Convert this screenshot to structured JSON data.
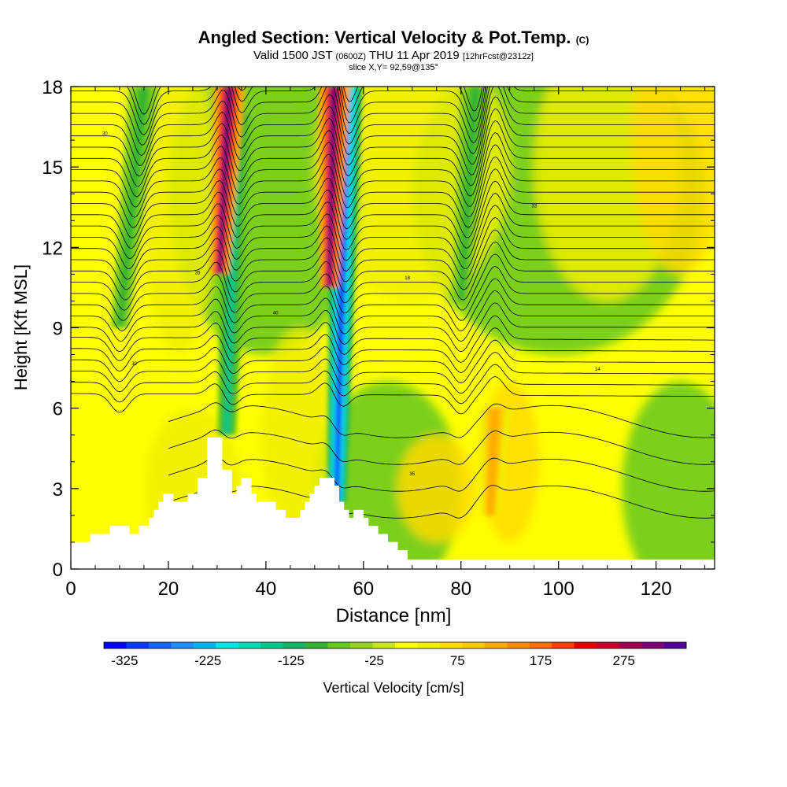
{
  "title": {
    "main": "Angled Section: Vertical Velocity & Pot.Temp.",
    "units_tag": "(C)",
    "valid_prefix": "Valid 1500 JST",
    "valid_z": "(0600Z)",
    "valid_date": "THU 11 Apr 2019",
    "forecast_tag": "[12hrFcst@2312z]",
    "slice": "slice X,Y= 92,59@135°"
  },
  "colors": {
    "scale": [
      "#0000ff",
      "#0a3cff",
      "#1464ff",
      "#1e90ff",
      "#00b4f0",
      "#00e6e6",
      "#00dcb4",
      "#00c88c",
      "#14b464",
      "#32b432",
      "#64c81e",
      "#96d21e",
      "#c8e61e",
      "#ffff00",
      "#f0f000",
      "#ffdc00",
      "#ffc800",
      "#ffaa00",
      "#ff8c00",
      "#ff6e00",
      "#ff3c00",
      "#e60000",
      "#c80028",
      "#a00050",
      "#800078",
      "#500096"
    ]
  },
  "chart_data": {
    "type": "heatmap",
    "xlabel": "Distance [nm]",
    "ylabel": "Height [Kft MSL]",
    "xlim": [
      0,
      132
    ],
    "ylim": [
      0,
      18
    ],
    "xticks": [
      0,
      20,
      40,
      60,
      80,
      100,
      120
    ],
    "yticks": [
      0,
      3,
      6,
      9,
      12,
      15,
      18
    ],
    "colorbar": {
      "label": "Vertical Velocity [cm/s]",
      "min": -350,
      "max": 350,
      "tick_labels": [
        -325,
        -225,
        -125,
        -25,
        75,
        175,
        275
      ]
    },
    "terrain_kft": [
      [
        0,
        1.0
      ],
      [
        4,
        1.0
      ],
      [
        4,
        1.3
      ],
      [
        8,
        1.3
      ],
      [
        8,
        1.6
      ],
      [
        12,
        1.6
      ],
      [
        12,
        1.3
      ],
      [
        14,
        1.3
      ],
      [
        14,
        1.6
      ],
      [
        16,
        1.6
      ],
      [
        16,
        1.9
      ],
      [
        17,
        1.9
      ],
      [
        17,
        2.2
      ],
      [
        18,
        2.2
      ],
      [
        18,
        2.5
      ],
      [
        19,
        2.5
      ],
      [
        19,
        2.8
      ],
      [
        21,
        2.8
      ],
      [
        21,
        2.5
      ],
      [
        24,
        2.5
      ],
      [
        24,
        2.8
      ],
      [
        26,
        2.8
      ],
      [
        26,
        3.4
      ],
      [
        28,
        3.4
      ],
      [
        28,
        4.9
      ],
      [
        31,
        4.9
      ],
      [
        31,
        3.7
      ],
      [
        33,
        3.7
      ],
      [
        33,
        2.8
      ],
      [
        34,
        2.8
      ],
      [
        34,
        3.1
      ],
      [
        35,
        3.1
      ],
      [
        35,
        3.4
      ],
      [
        37,
        3.4
      ],
      [
        37,
        2.8
      ],
      [
        38,
        2.8
      ],
      [
        38,
        2.5
      ],
      [
        42,
        2.5
      ],
      [
        42,
        2.2
      ],
      [
        44,
        2.2
      ],
      [
        44,
        1.9
      ],
      [
        47,
        1.9
      ],
      [
        47,
        2.2
      ],
      [
        48,
        2.2
      ],
      [
        48,
        2.5
      ],
      [
        49,
        2.5
      ],
      [
        49,
        2.8
      ],
      [
        50,
        2.8
      ],
      [
        50,
        3.1
      ],
      [
        51,
        3.1
      ],
      [
        51,
        3.4
      ],
      [
        54,
        3.4
      ],
      [
        54,
        3.1
      ],
      [
        55,
        3.1
      ],
      [
        55,
        2.5
      ],
      [
        56,
        2.5
      ],
      [
        56,
        2.2
      ],
      [
        57,
        2.2
      ],
      [
        57,
        1.9
      ],
      [
        58,
        1.9
      ],
      [
        58,
        2.2
      ],
      [
        60,
        2.2
      ],
      [
        60,
        1.9
      ],
      [
        61,
        1.9
      ],
      [
        61,
        1.6
      ],
      [
        63,
        1.6
      ],
      [
        63,
        1.3
      ],
      [
        65,
        1.3
      ],
      [
        65,
        1.0
      ],
      [
        67,
        1.0
      ],
      [
        67,
        0.7
      ],
      [
        69,
        0.7
      ],
      [
        69,
        0.35
      ],
      [
        132,
        0.35
      ]
    ],
    "updrafts": [
      {
        "x_top": 32.5,
        "x_bottom": 30.5,
        "y_top": 18,
        "y_bottom": 11,
        "peak_cms": 300
      },
      {
        "x_top": 54,
        "x_bottom": 53,
        "y_top": 18,
        "y_bottom": 10.5,
        "peak_cms": 300
      },
      {
        "x_top": 87,
        "x_bottom": 86,
        "y_top": 6,
        "y_bottom": 2,
        "peak_cms": 120
      }
    ],
    "downdrafts": [
      {
        "x_top": 34,
        "x_bottom": 32,
        "y_top": 17,
        "y_bottom": 5,
        "peak_cms": -150
      },
      {
        "x_top": 56.5,
        "x_bottom": 54.5,
        "y_top": 18,
        "y_bottom": 2.5,
        "peak_cms": -300
      },
      {
        "x_top": 83,
        "x_bottom": 80,
        "y_top": 18,
        "y_bottom": 10,
        "peak_cms": -100
      },
      {
        "x_top": 15,
        "x_bottom": 10,
        "y_top": 18,
        "y_bottom": 9,
        "peak_cms": -100
      }
    ],
    "isentrope_labels": [
      "30",
      "35",
      "40",
      "18",
      "33",
      "14"
    ]
  }
}
